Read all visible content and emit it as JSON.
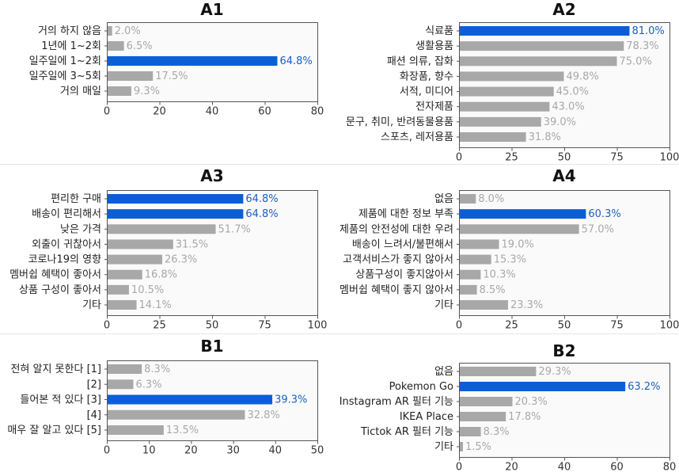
{
  "colors": {
    "bar": "#a8a8a8",
    "highlight": "#0a5fd6",
    "value_label": "#a8a8a8",
    "highlight_value_label": "#1a5fc4",
    "axis": "#555555"
  },
  "chart_data": [
    {
      "type": "bar",
      "orientation": "horizontal",
      "title": "A1",
      "categories": [
        "거의 하지 않음",
        "1년에 1~2회",
        "일주일에 1~2회",
        "일주일에 3~5회",
        "거의 매일"
      ],
      "values": [
        2.0,
        6.5,
        64.8,
        17.5,
        9.3
      ],
      "value_labels": [
        "2.0%",
        "6.5%",
        "64.8%",
        "17.5%",
        "9.3%"
      ],
      "highlight": [
        2
      ],
      "xlim": [
        0,
        80
      ],
      "xticks": [
        0,
        20,
        40,
        60,
        80
      ]
    },
    {
      "type": "bar",
      "orientation": "horizontal",
      "title": "A2",
      "categories": [
        "식료품",
        "생활용품",
        "패션 의류, 잡화",
        "화장품, 향수",
        "서적, 미디어",
        "전자제품",
        "문구, 취미, 반려동물용품",
        "스포츠, 레저용품"
      ],
      "values": [
        81.0,
        78.3,
        75.0,
        49.8,
        45.0,
        43.0,
        39.0,
        31.8
      ],
      "value_labels": [
        "81.0%",
        "78.3%",
        "75.0%",
        "49.8%",
        "45.0%",
        "43.0%",
        "39.0%",
        "31.8%"
      ],
      "highlight": [
        0
      ],
      "xlim": [
        0,
        100
      ],
      "xticks": [
        0,
        25,
        50,
        75,
        100
      ]
    },
    {
      "type": "bar",
      "orientation": "horizontal",
      "title": "A3",
      "categories": [
        "편리한 구매",
        "배송이 편리해서",
        "낮은 가격",
        "외출이 귀찮아서",
        "코로나19의 영향",
        "멤버쉽 혜택이 좋아서",
        "상품 구성이 좋아서",
        "기타"
      ],
      "values": [
        64.8,
        64.8,
        51.7,
        31.5,
        26.3,
        16.8,
        10.5,
        14.1
      ],
      "value_labels": [
        "64.8%",
        "64.8%",
        "51.7%",
        "31.5%",
        "26.3%",
        "16.8%",
        "10.5%",
        "14.1%"
      ],
      "highlight": [
        0,
        1
      ],
      "xlim": [
        0,
        100
      ],
      "xticks": [
        0,
        25,
        50,
        75,
        100
      ]
    },
    {
      "type": "bar",
      "orientation": "horizontal",
      "title": "A4",
      "categories": [
        "없음",
        "제품에 대한 정보 부족",
        "제품의 안전성에 대한 우려",
        "배송이 느려서/불편해서",
        "고객서비스가 좋지 않아서",
        "상품구성이 좋지않아서",
        "멤버쉽 혜택이 좋지 않아서",
        "기타"
      ],
      "values": [
        8.0,
        60.3,
        57.0,
        19.0,
        15.3,
        10.3,
        8.5,
        23.3
      ],
      "value_labels": [
        "8.0%",
        "60.3%",
        "57.0%",
        "19.0%",
        "15.3%",
        "10.3%",
        "8.5%",
        "23.3%"
      ],
      "highlight": [
        1
      ],
      "xlim": [
        0,
        100
      ],
      "xticks": [
        0,
        25,
        50,
        75,
        100
      ]
    },
    {
      "type": "bar",
      "orientation": "horizontal",
      "title": "B1",
      "categories": [
        "전혀 알지 못한다 [1]",
        "[2]",
        "들어본 적 있다 [3]",
        "[4]",
        "매우 잘 알고 있다 [5]"
      ],
      "values": [
        8.3,
        6.3,
        39.3,
        32.8,
        13.5
      ],
      "value_labels": [
        "8.3%",
        "6.3%",
        "39.3%",
        "32.8%",
        "13.5%"
      ],
      "highlight": [
        2
      ],
      "xlim": [
        0,
        50
      ],
      "xticks": [
        0,
        10,
        20,
        30,
        40,
        50
      ]
    },
    {
      "type": "bar",
      "orientation": "horizontal",
      "title": "B2",
      "categories": [
        "없음",
        "Pokemon Go",
        "Instagram AR 필터 기능",
        "IKEA Place",
        "Tictok AR 필터 기능",
        "기타"
      ],
      "values": [
        29.3,
        63.2,
        20.3,
        17.8,
        8.3,
        1.5
      ],
      "value_labels": [
        "29.3%",
        "63.2%",
        "20.3%",
        "17.8%",
        "8.3%",
        "1.5%"
      ],
      "highlight": [
        1
      ],
      "xlim": [
        0,
        80
      ],
      "xticks": [
        0,
        20,
        40,
        60,
        80
      ]
    }
  ]
}
